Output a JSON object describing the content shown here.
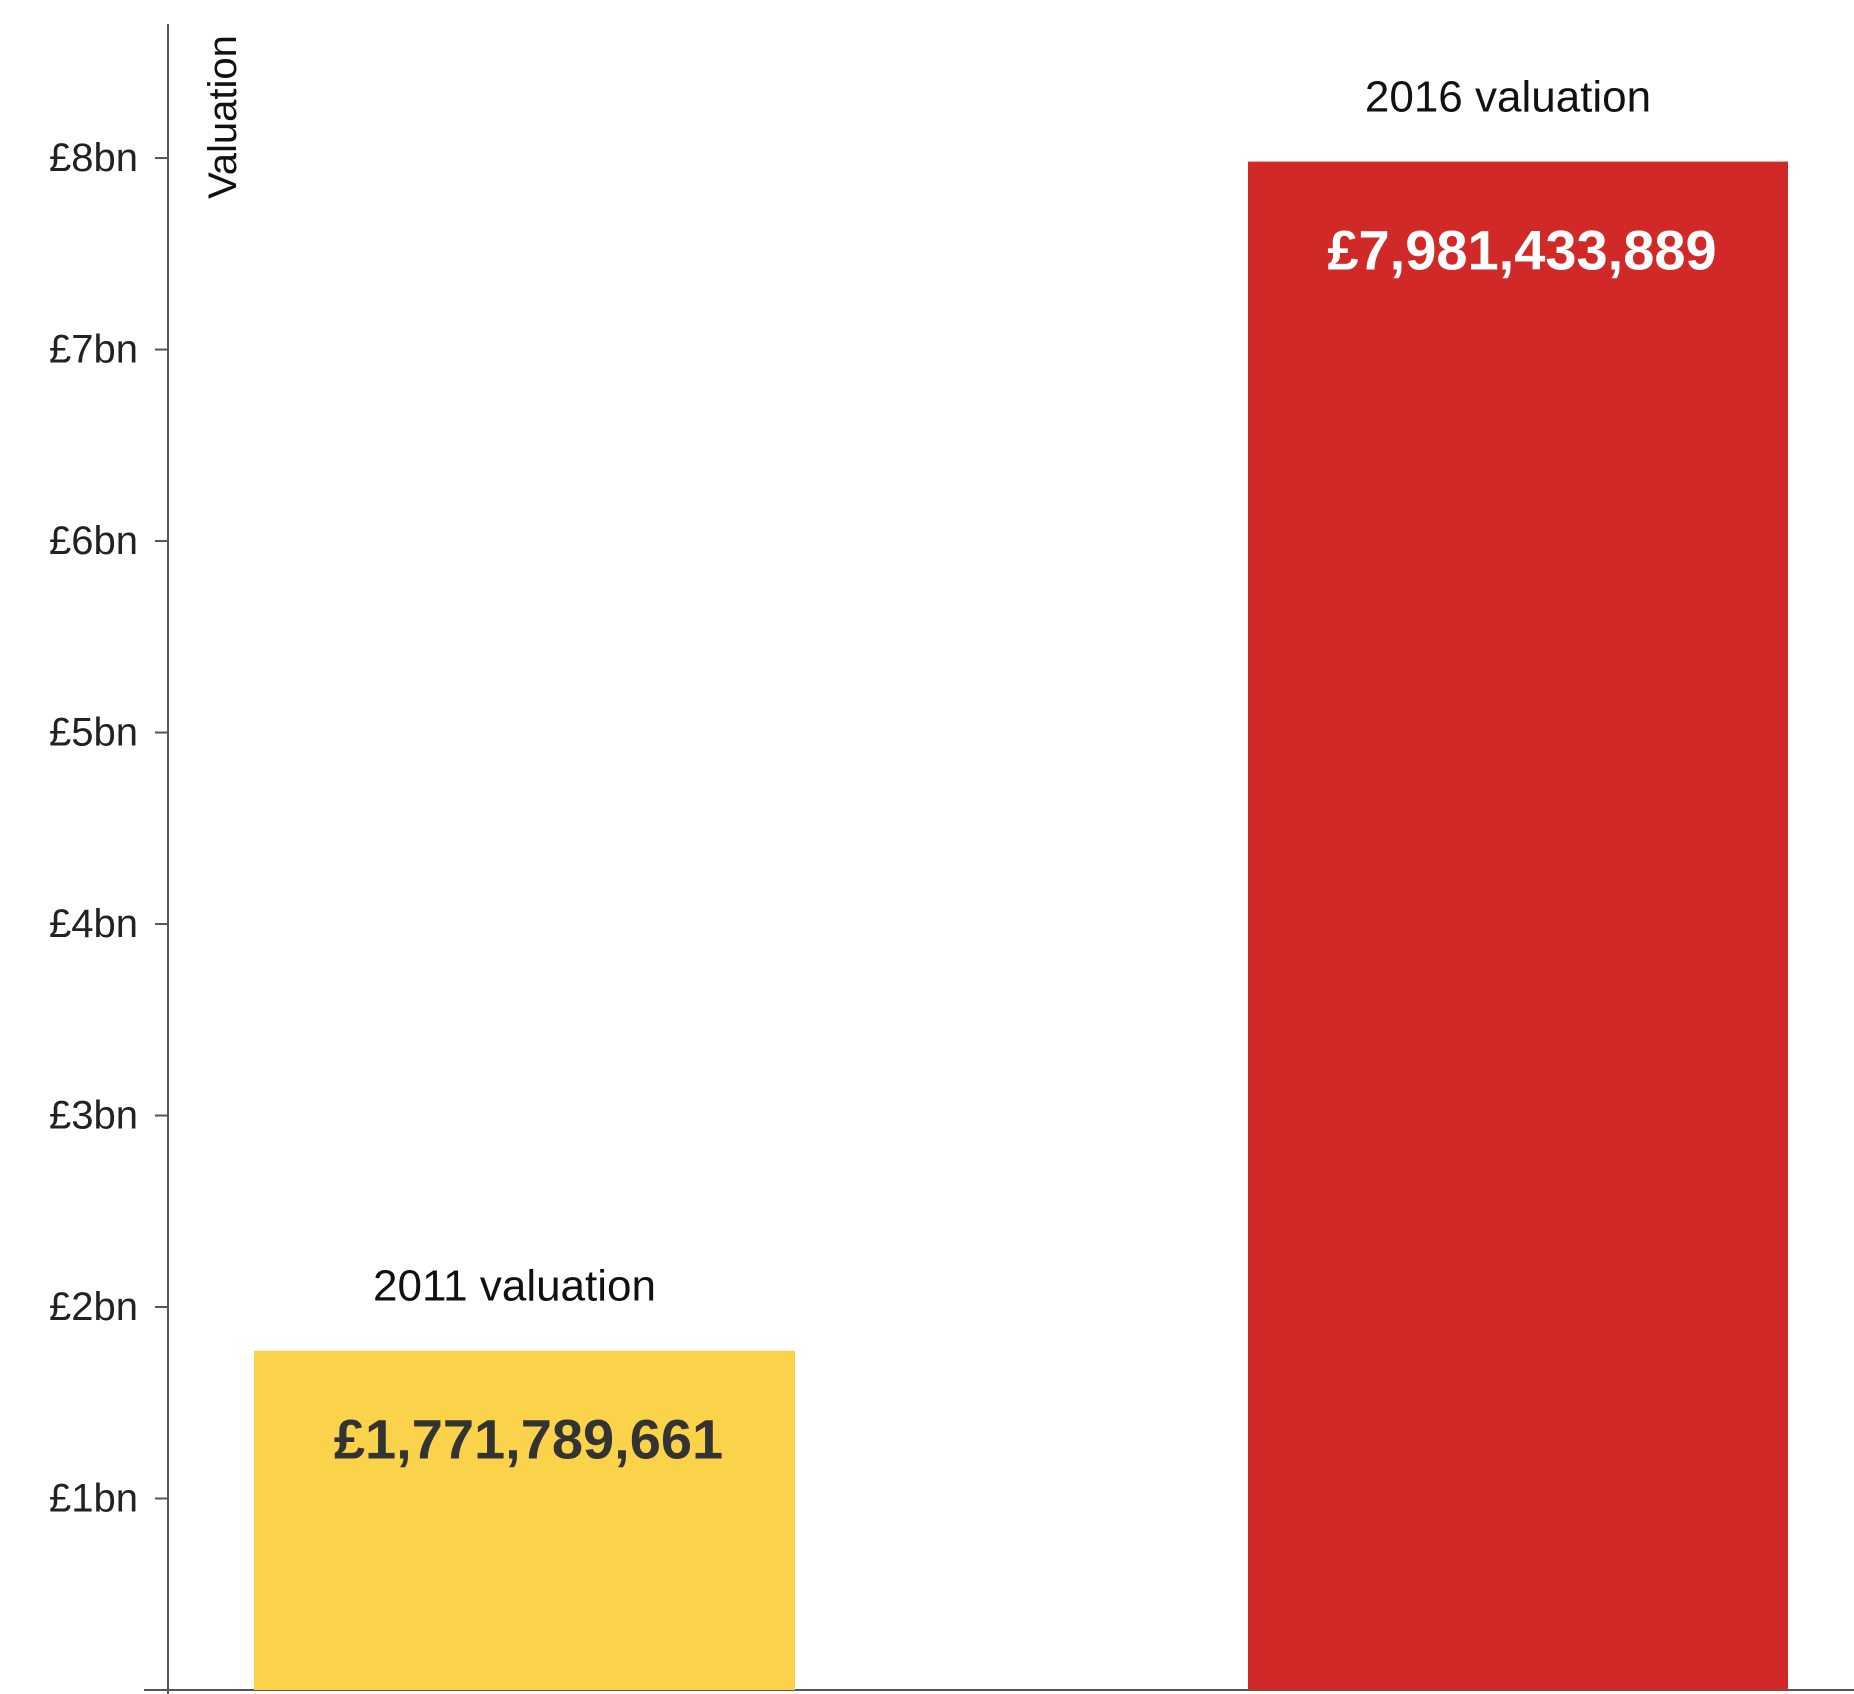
{
  "chart_data": {
    "type": "bar",
    "ylabel": "Valuation",
    "categories": [
      "2011 valuation",
      "2016 valuation"
    ],
    "values": [
      1771789661,
      7981433889
    ],
    "value_labels": [
      "£1,771,789,661",
      "£7,981,433,889"
    ],
    "ylim": [
      0,
      8700000000
    ],
    "yticks": [
      1000000000,
      2000000000,
      3000000000,
      4000000000,
      5000000000,
      6000000000,
      7000000000,
      8000000000
    ],
    "ytick_labels": [
      "£1bn",
      "£2bn",
      "£3bn",
      "£4bn",
      "£5bn",
      "£6bn",
      "£7bn",
      "£8bn"
    ],
    "colors": [
      "#fbd34b",
      "#d12828"
    ],
    "value_label_colors": [
      "#333333",
      "#ffffff"
    ],
    "axis_color": "#555555",
    "grid": false,
    "legend": "none"
  }
}
